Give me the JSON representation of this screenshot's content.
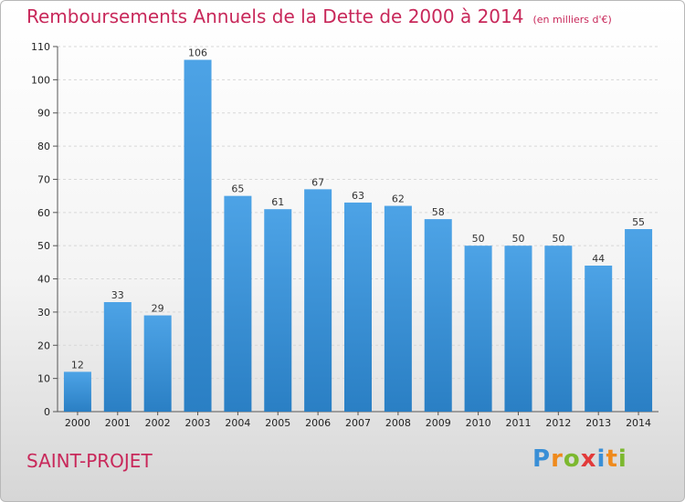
{
  "title": "Remboursements Annuels de la Dette de 2000 à 2014",
  "subtitle": "(en milliers d'€)",
  "commune": "SAINT-PROJET",
  "brand": "Proxiti",
  "colors": {
    "bar": "#4da3e6",
    "bar_dark": "#2a7fc4",
    "title": "#c8285a",
    "grid": "#d8d8d8"
  },
  "chart_data": {
    "type": "bar",
    "title": "Remboursements Annuels de la Dette de 2000 à 2014",
    "subtitle": "(en milliers d'€)",
    "xlabel": "",
    "ylabel": "",
    "categories": [
      "2000",
      "2001",
      "2002",
      "2003",
      "2004",
      "2005",
      "2006",
      "2007",
      "2008",
      "2009",
      "2010",
      "2011",
      "2012",
      "2013",
      "2014"
    ],
    "values": [
      12,
      33,
      29,
      106,
      65,
      61,
      67,
      63,
      62,
      58,
      50,
      50,
      50,
      44,
      55
    ],
    "ylim": [
      0,
      110
    ],
    "yticks": [
      0,
      10,
      20,
      30,
      40,
      50,
      60,
      70,
      80,
      90,
      100,
      110
    ],
    "grid": true
  }
}
